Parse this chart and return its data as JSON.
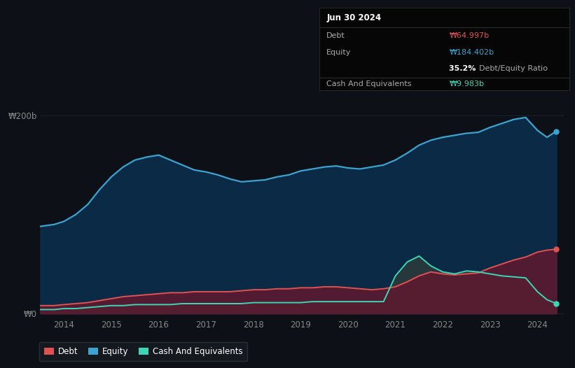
{
  "bg_color": "#0d1117",
  "plot_bg_color": "#0d1117",
  "debt_color": "#e05252",
  "equity_color": "#3ba3d0",
  "cash_color": "#3dd6b5",
  "debt_fill_color": "#5c1a30",
  "equity_fill_color": "#0a2a45",
  "cash_fill_color": "#2a3a3a",
  "tooltip": {
    "date": "Jun 30 2024",
    "debt_label": "Debt",
    "debt_value": "₩64.997b",
    "equity_label": "Equity",
    "equity_value": "₩184.402b",
    "ratio_pct": "35.2%",
    "ratio_label": "Debt/Equity Ratio",
    "cash_label": "Cash And Equivalents",
    "cash_value": "₩9.983b"
  },
  "xticklabels": [
    "2014",
    "2015",
    "2016",
    "2017",
    "2018",
    "2019",
    "2020",
    "2021",
    "2022",
    "2023",
    "2024"
  ],
  "xtick_positions": [
    2014,
    2015,
    2016,
    2017,
    2018,
    2019,
    2020,
    2021,
    2022,
    2023,
    2024
  ],
  "years": [
    2013.5,
    2013.8,
    2014.0,
    2014.25,
    2014.5,
    2014.75,
    2015.0,
    2015.25,
    2015.5,
    2015.75,
    2016.0,
    2016.25,
    2016.5,
    2016.75,
    2017.0,
    2017.25,
    2017.5,
    2017.75,
    2018.0,
    2018.25,
    2018.5,
    2018.75,
    2019.0,
    2019.25,
    2019.5,
    2019.75,
    2020.0,
    2020.25,
    2020.5,
    2020.75,
    2021.0,
    2021.25,
    2021.5,
    2021.75,
    2022.0,
    2022.25,
    2022.5,
    2022.75,
    2023.0,
    2023.25,
    2023.5,
    2023.75,
    2024.0,
    2024.2,
    2024.4
  ],
  "equity": [
    88,
    90,
    93,
    100,
    110,
    125,
    138,
    148,
    155,
    158,
    160,
    155,
    150,
    145,
    143,
    140,
    136,
    133,
    134,
    135,
    138,
    140,
    144,
    146,
    148,
    149,
    147,
    146,
    148,
    150,
    155,
    162,
    170,
    175,
    178,
    180,
    182,
    183,
    188,
    192,
    196,
    198,
    185,
    178,
    184
  ],
  "debt": [
    8,
    8,
    9,
    10,
    11,
    13,
    15,
    17,
    18,
    19,
    20,
    21,
    21,
    22,
    22,
    22,
    22,
    23,
    24,
    24,
    25,
    25,
    26,
    26,
    27,
    27,
    26,
    25,
    24,
    25,
    27,
    32,
    38,
    42,
    40,
    39,
    40,
    41,
    46,
    50,
    54,
    57,
    62,
    64,
    65
  ],
  "cash": [
    4,
    4,
    5,
    5,
    6,
    7,
    8,
    8,
    9,
    9,
    9,
    9,
    10,
    10,
    10,
    10,
    10,
    10,
    11,
    11,
    11,
    11,
    11,
    12,
    12,
    12,
    12,
    12,
    12,
    12,
    38,
    52,
    58,
    48,
    42,
    40,
    43,
    42,
    40,
    38,
    37,
    36,
    22,
    14,
    10
  ],
  "xlim": [
    2013.5,
    2024.55
  ],
  "ylim": [
    -3,
    220
  ],
  "ylabel_200": "₩200b",
  "ylabel_0": "₩0"
}
